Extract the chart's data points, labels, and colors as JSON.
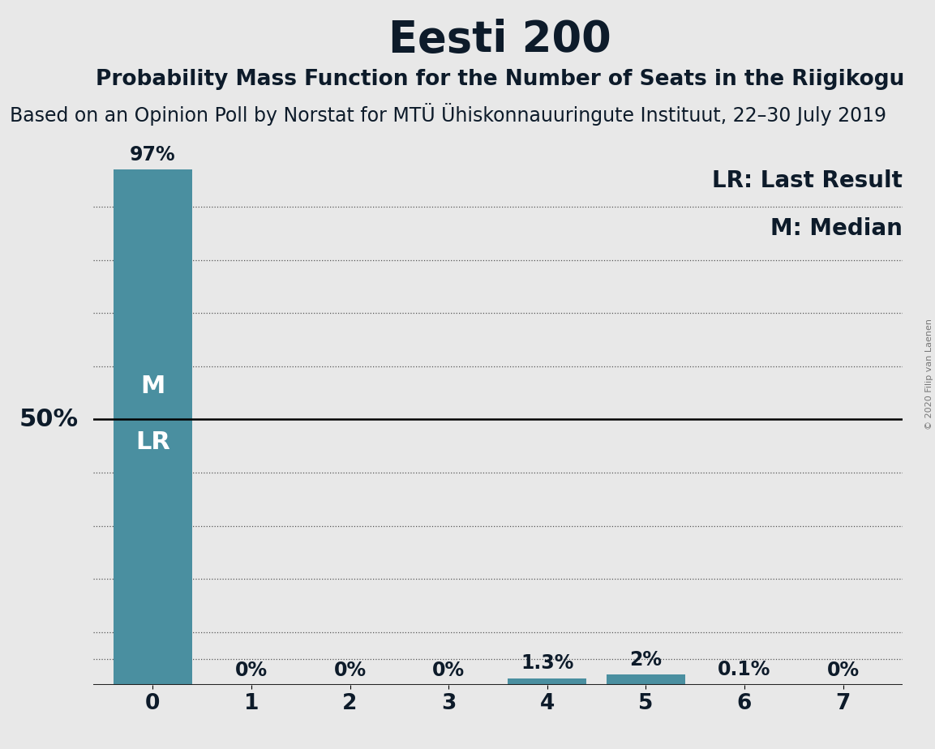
{
  "title": "Eesti 200",
  "subtitle1": "Probability Mass Function for the Number of Seats in the Riigikogu",
  "subtitle2": "Based on an Opinion Poll by Norstat for MTÜ Ühiskonnauuringute Instituut, 22–30 July 2019",
  "copyright": "© 2020 Filip van Laenen",
  "categories": [
    0,
    1,
    2,
    3,
    4,
    5,
    6,
    7
  ],
  "values": [
    97.0,
    0.0,
    0.0,
    0.0,
    1.3,
    2.0,
    0.1,
    0.0
  ],
  "bar_labels": [
    "97%",
    "0%",
    "0%",
    "0%",
    "1.3%",
    "2%",
    "0.1%",
    "0%"
  ],
  "bar_color": "#4a8fa0",
  "background_color": "#e8e8e8",
  "text_color": "#0d1b2a",
  "ylim": [
    0,
    100
  ],
  "ylabel_50_text": "50%",
  "median_label": "M",
  "lr_label": "LR",
  "legend_lr": "LR: Last Result",
  "legend_m": "M: Median",
  "hline_y": 50,
  "title_fontsize": 38,
  "subtitle1_fontsize": 19,
  "subtitle2_fontsize": 17,
  "bar_label_fontsize": 17,
  "axis_tick_fontsize": 19,
  "ylabel_fontsize": 22,
  "legend_fontsize": 20,
  "inside_label_fontsize": 22,
  "copyright_fontsize": 8
}
